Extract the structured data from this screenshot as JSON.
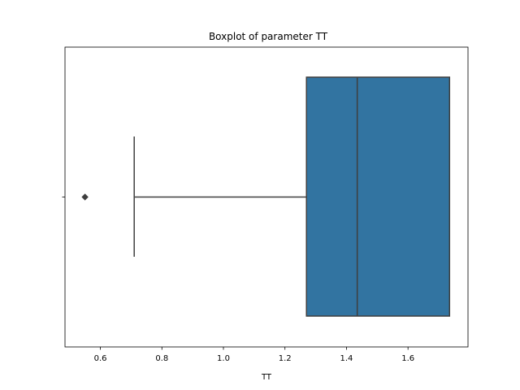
{
  "chart_data": {
    "type": "box",
    "title": "Boxplot of parameter TT",
    "xlabel": "TT",
    "ylabel": "",
    "orientation": "horizontal",
    "xlim": [
      0.485,
      1.795
    ],
    "x_ticks": [
      0.6,
      0.8,
      1.0,
      1.2,
      1.4,
      1.6
    ],
    "x_tick_labels": [
      "0.6",
      "0.8",
      "1.0",
      "1.2",
      "1.4",
      "1.6"
    ],
    "grid": false,
    "box": {
      "whisker_low": 0.71,
      "q1": 1.27,
      "median": 1.435,
      "q3": 1.735,
      "whisker_high": 1.735,
      "outliers": [
        0.55
      ]
    },
    "colors": {
      "box_fill": "#3274a1",
      "line": "#3f3f3f",
      "axis": "#000000"
    }
  }
}
